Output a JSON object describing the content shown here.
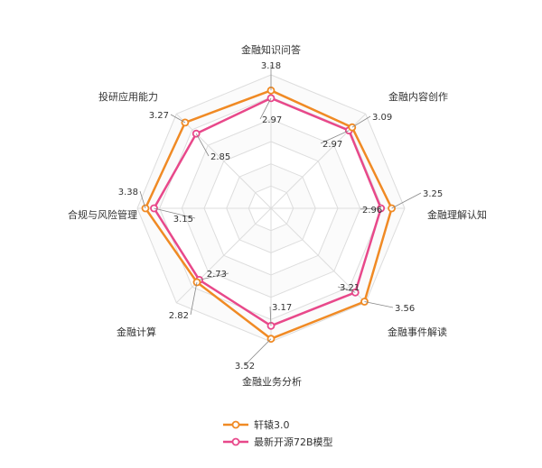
{
  "chart_data": {
    "type": "radar",
    "categories": [
      "金融知识问答",
      "金融内容创作",
      "金融理解认知",
      "金融事件解读",
      "金融业务分析",
      "金融计算",
      "合规与风险管理",
      "投研应用能力"
    ],
    "series": [
      {
        "name": "轩辕3.0",
        "values": [
          3.18,
          3.09,
          3.25,
          3.56,
          3.52,
          2.82,
          3.38,
          3.27
        ],
        "color": "#F08A24"
      },
      {
        "name": "最新开源72B模型",
        "values": [
          2.97,
          2.97,
          2.96,
          3.21,
          3.17,
          2.73,
          3.15,
          2.85
        ],
        "color": "#E8488A"
      }
    ],
    "value_labels": {
      "series_0": [
        "3.18",
        "3.09",
        "3.25",
        "3.56",
        "3.52",
        "2.82",
        "3.38",
        "3.27"
      ],
      "series_1": [
        "2.97",
        "2.97",
        "2.96",
        "3.21",
        "3.17",
        "2.73",
        "3.15",
        "2.85"
      ]
    },
    "rlim": [
      0,
      3.6
    ],
    "grid": true,
    "legend_position": "bottom-left",
    "grid_color": "#DDDDDD"
  }
}
